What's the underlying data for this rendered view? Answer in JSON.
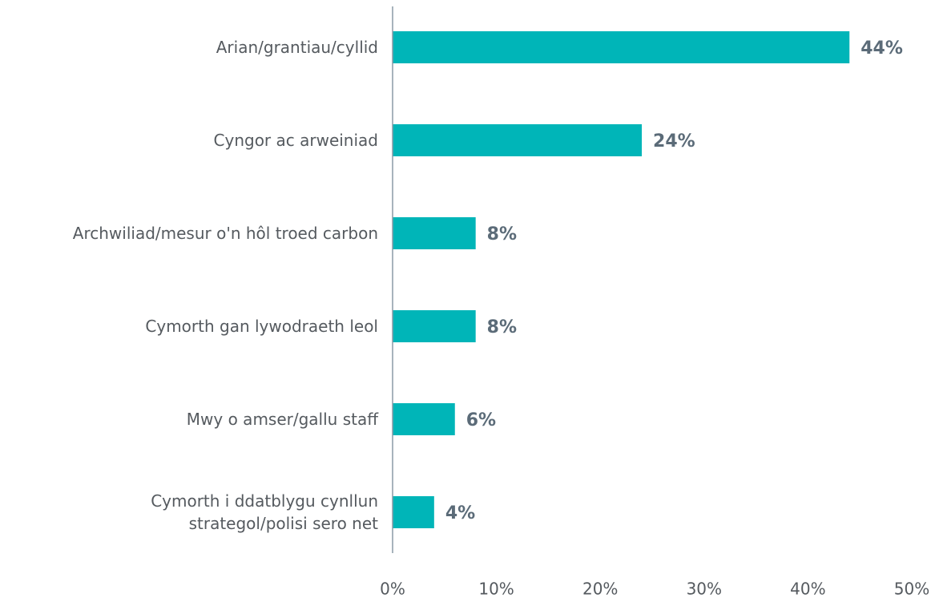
{
  "chart_data": {
    "type": "hbar",
    "categories": [
      "Arian/grantiau/cyllid",
      "Cyngor ac arweiniad",
      "Archwiliad/mesur o'n hôl troed carbon",
      "Cymorth gan lywodraeth leol",
      "Mwy o amser/gallu staff",
      "Cymorth i ddatblygu cynllun\nstrategol/polisi sero net"
    ],
    "values": [
      44,
      24,
      8,
      8,
      6,
      4
    ],
    "value_labels": [
      "44%",
      "24%",
      "8%",
      "8%",
      "6%",
      "4%"
    ],
    "color": "#00b5b8",
    "xlim": [
      0,
      50
    ],
    "xticks": [
      {
        "value": 0,
        "label": "0%"
      },
      {
        "value": 10,
        "label": "10%"
      },
      {
        "value": 20,
        "label": "20%"
      },
      {
        "value": 30,
        "label": "30%"
      },
      {
        "value": 40,
        "label": "40%"
      },
      {
        "value": 50,
        "label": "50%"
      }
    ]
  }
}
